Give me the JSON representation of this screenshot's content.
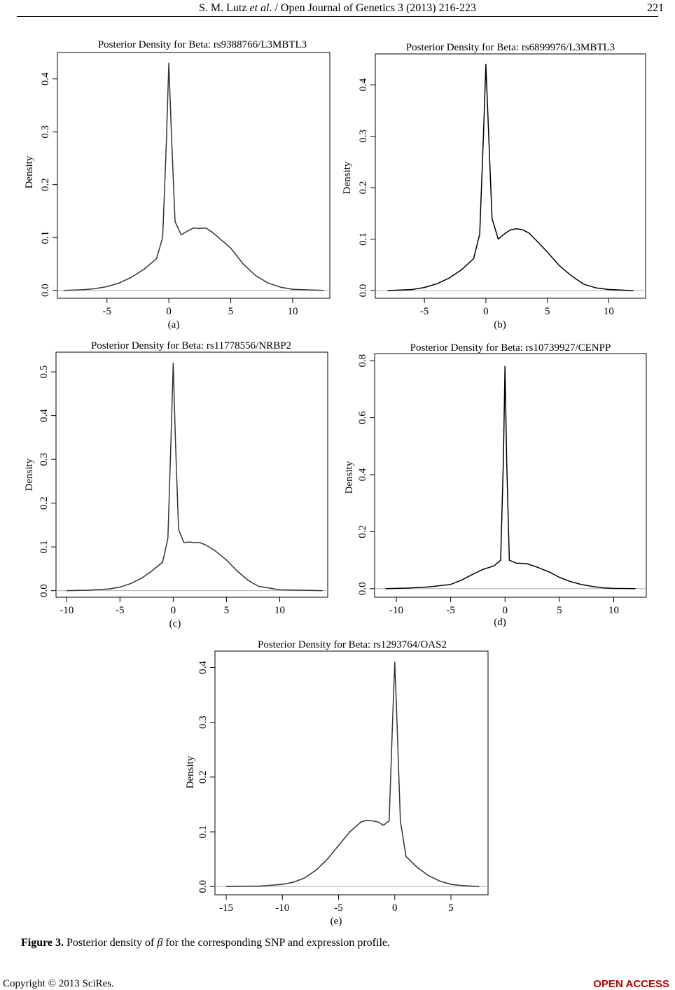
{
  "header": {
    "authors": "S. M. Lutz",
    "et_al": "et al",
    "journal": ". / Open Journal of Genetics 3 (2013) 216-223",
    "page_number": "221"
  },
  "caption": {
    "label": "Figure 3.",
    "text_before": " Posterior density of ",
    "symbol": "β",
    "text_after": " for the corresponding SNP and expression profile."
  },
  "footer": {
    "copyright": "Copyright © 2013 SciRes.",
    "access": "OPEN ACCESS"
  },
  "chart_data": [
    {
      "type": "line",
      "panel": "(a)",
      "title": "Posterior Density for Beta: rs9388766/L3MBTL3",
      "ylabel": "Density",
      "xticks": [
        -5,
        0,
        5,
        10
      ],
      "yticks": [
        0.0,
        0.1,
        0.2,
        0.3,
        0.4
      ],
      "xlim": [
        -9,
        13
      ],
      "ylim": [
        -0.015,
        0.45
      ],
      "series": [
        {
          "x": [
            -8.5,
            -7,
            -6,
            -5,
            -4,
            -3,
            -2,
            -1,
            -0.5,
            -0.2,
            0,
            0.2,
            0.5,
            1,
            1.5,
            2,
            2.5,
            3,
            3.5,
            4,
            5,
            6,
            7,
            8,
            9,
            10,
            11,
            12.5
          ],
          "y": [
            0.0,
            0.001,
            0.003,
            0.007,
            0.014,
            0.025,
            0.04,
            0.06,
            0.1,
            0.28,
            0.43,
            0.3,
            0.13,
            0.105,
            0.112,
            0.118,
            0.117,
            0.118,
            0.11,
            0.1,
            0.08,
            0.05,
            0.028,
            0.014,
            0.006,
            0.002,
            0.001,
            0.0
          ]
        }
      ]
    },
    {
      "type": "line",
      "panel": "(b)",
      "title": "Posterior Density for Beta: rs6899976/L3MBTL3",
      "ylabel": "Density",
      "xticks": [
        -5,
        0,
        5,
        10
      ],
      "yticks": [
        0.0,
        0.1,
        0.2,
        0.3,
        0.4
      ],
      "xlim": [
        -9,
        13
      ],
      "ylim": [
        -0.015,
        0.46
      ],
      "series": [
        {
          "x": [
            -8,
            -6,
            -5,
            -4,
            -3,
            -2,
            -1,
            -0.5,
            -0.2,
            0,
            0.2,
            0.5,
            1,
            1.5,
            2,
            2.5,
            3,
            3.5,
            4,
            5,
            6,
            7,
            8,
            9,
            10,
            12
          ],
          "y": [
            0.0,
            0.002,
            0.006,
            0.013,
            0.024,
            0.04,
            0.062,
            0.11,
            0.3,
            0.44,
            0.32,
            0.14,
            0.1,
            0.11,
            0.118,
            0.12,
            0.118,
            0.112,
            0.1,
            0.075,
            0.048,
            0.028,
            0.012,
            0.005,
            0.002,
            0.0
          ]
        }
      ]
    },
    {
      "type": "line",
      "panel": "(c)",
      "title": "Posterior Density for Beta: rs11778556/NRBP2",
      "ylabel": "Density",
      "xticks": [
        -10,
        -5,
        0,
        5,
        10
      ],
      "yticks": [
        0.0,
        0.1,
        0.2,
        0.3,
        0.4,
        0.5
      ],
      "xlim": [
        -11,
        14.5
      ],
      "ylim": [
        -0.015,
        0.545
      ],
      "series": [
        {
          "x": [
            -10,
            -8,
            -6,
            -5,
            -4,
            -3,
            -2,
            -1,
            -0.5,
            -0.2,
            0,
            0.2,
            0.5,
            1,
            1.5,
            2,
            2.5,
            3,
            3.5,
            4,
            5,
            6,
            7,
            8,
            10,
            12,
            14
          ],
          "y": [
            0.0,
            0.001,
            0.004,
            0.008,
            0.016,
            0.028,
            0.045,
            0.065,
            0.12,
            0.35,
            0.52,
            0.35,
            0.14,
            0.11,
            0.111,
            0.11,
            0.11,
            0.105,
            0.098,
            0.09,
            0.07,
            0.045,
            0.024,
            0.01,
            0.002,
            0.001,
            0.0
          ]
        }
      ]
    },
    {
      "type": "line",
      "panel": "(d)",
      "title": "Posterior Density for Beta: rs10739927/CENPP",
      "ylabel": "Density",
      "xticks": [
        -10,
        -5,
        0,
        5,
        10
      ],
      "yticks": [
        0.0,
        0.2,
        0.4,
        0.6,
        0.8
      ],
      "xlim": [
        -12,
        13
      ],
      "ylim": [
        -0.03,
        0.825
      ],
      "series": [
        {
          "x": [
            -11,
            -9,
            -7,
            -5,
            -4,
            -3,
            -2,
            -1,
            -0.4,
            -0.15,
            0,
            0.15,
            0.4,
            1,
            2,
            3,
            4,
            5,
            6,
            7,
            8,
            9,
            10,
            12
          ],
          "y": [
            0.0,
            0.002,
            0.006,
            0.015,
            0.03,
            0.05,
            0.068,
            0.08,
            0.1,
            0.45,
            0.78,
            0.45,
            0.1,
            0.09,
            0.088,
            0.075,
            0.06,
            0.04,
            0.025,
            0.015,
            0.008,
            0.003,
            0.001,
            0.0
          ]
        }
      ]
    },
    {
      "type": "line",
      "panel": "(e)",
      "title": "Posterior Density for Beta: rs1293764/OAS2",
      "ylabel": "Density",
      "xticks": [
        -15,
        -10,
        -5,
        0,
        5
      ],
      "yticks": [
        0.0,
        0.1,
        0.2,
        0.3,
        0.4
      ],
      "xlim": [
        -16,
        8.3
      ],
      "ylim": [
        -0.015,
        0.43
      ],
      "series": [
        {
          "x": [
            -15,
            -12,
            -10,
            -9,
            -8,
            -7,
            -6,
            -5,
            -4,
            -3,
            -2.5,
            -2,
            -1.5,
            -1,
            -0.5,
            -0.2,
            0,
            0.2,
            0.5,
            1,
            2,
            3,
            4,
            5,
            6,
            7.5
          ],
          "y": [
            0.0,
            0.001,
            0.004,
            0.008,
            0.016,
            0.03,
            0.05,
            0.075,
            0.1,
            0.118,
            0.121,
            0.12,
            0.118,
            0.112,
            0.12,
            0.3,
            0.41,
            0.3,
            0.12,
            0.055,
            0.035,
            0.02,
            0.01,
            0.004,
            0.002,
            0.0
          ]
        }
      ]
    }
  ]
}
